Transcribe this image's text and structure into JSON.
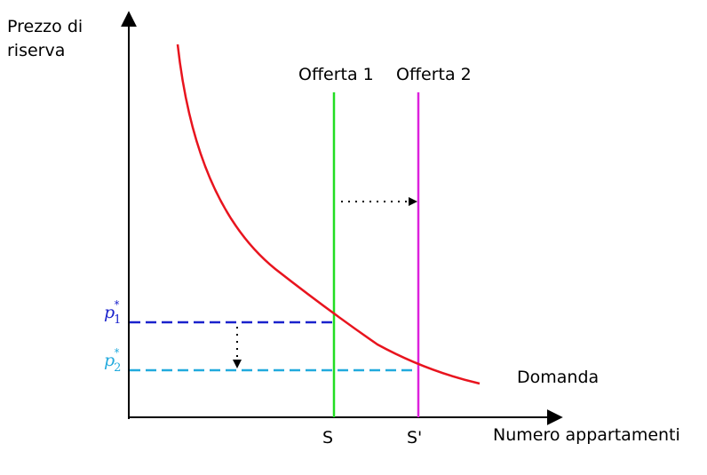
{
  "axes": {
    "y_label_line1": "Prezzo di",
    "y_label_line2": "riserva",
    "x_label": "Numero appartamenti"
  },
  "supply": {
    "label_1": "Offerta 1",
    "label_2": "Offerta 2",
    "tick_1": "S",
    "tick_2": "S'"
  },
  "demand": {
    "label": "Domanda"
  },
  "prices": {
    "p1_base": "p",
    "p1_sub": "1",
    "p1_sup": "*",
    "p2_base": "p",
    "p2_sub": "2",
    "p2_sup": "*"
  },
  "colors": {
    "demand": "#e8141e",
    "offerta_1": "#22dd22",
    "offerta_2": "#dd22dd",
    "p1": "#1a22cc",
    "p2": "#22aadd",
    "axis": "#000000"
  }
}
